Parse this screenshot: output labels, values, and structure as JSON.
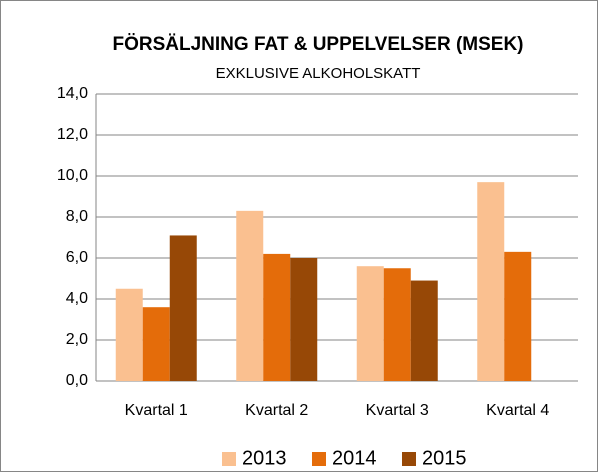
{
  "chart_data": {
    "type": "bar",
    "title": "FÖRSÄLJNING FAT & UPPELVELSER (MSEK)",
    "subtitle": "EXKLUSIVE ALKOHOLSKATT",
    "categories": [
      "Kvartal 1",
      "Kvartal 2",
      "Kvartal 3",
      "Kvartal 4"
    ],
    "series": [
      {
        "name": "2013",
        "color": "#fac090",
        "values": [
          4.5,
          8.3,
          5.6,
          9.7
        ]
      },
      {
        "name": "2014",
        "color": "#e46c0a",
        "values": [
          3.6,
          6.2,
          5.5,
          6.3
        ]
      },
      {
        "name": "2015",
        "color": "#974806",
        "values": [
          7.1,
          6.0,
          4.9,
          null
        ]
      }
    ],
    "ylim": [
      0,
      14
    ],
    "yticks": [
      {
        "value": 0,
        "label": "0,0"
      },
      {
        "value": 2,
        "label": "2,0"
      },
      {
        "value": 4,
        "label": "4,0"
      },
      {
        "value": 6,
        "label": "6,0"
      },
      {
        "value": 8,
        "label": "8,0"
      },
      {
        "value": 10,
        "label": "10,0"
      },
      {
        "value": 12,
        "label": "12,0"
      },
      {
        "value": 14,
        "label": "14,0"
      }
    ],
    "grid": true,
    "legend": "bottom"
  }
}
